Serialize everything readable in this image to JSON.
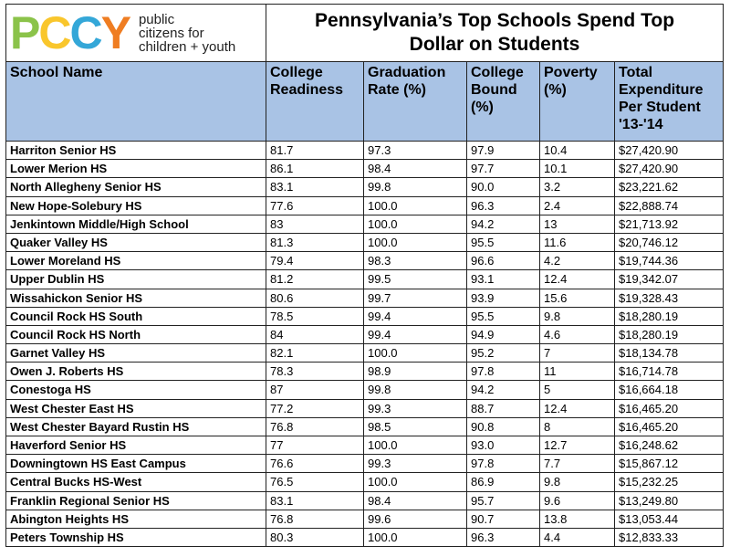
{
  "logo": {
    "letters": [
      {
        "char": "P",
        "color": "#8bc34a"
      },
      {
        "char": "C",
        "color": "#f9c62c"
      },
      {
        "char": "C",
        "color": "#34a7d8"
      },
      {
        "char": "Y",
        "color": "#ef7d22"
      }
    ],
    "lines": [
      "public",
      "citizens for",
      "children + youth"
    ]
  },
  "title": [
    "Pennsylvania’s Top Schools Spend Top",
    "Dollar on Students"
  ],
  "headers": [
    "School Name",
    "College Readiness",
    "Graduation Rate (%)",
    "College Bound (%)",
    "Poverty (%)",
    "Total Expenditure Per Student '13-'14"
  ],
  "header_color": "#a9c3e5",
  "rows": [
    [
      "Harriton Senior  HS",
      "81.7",
      "97.3",
      "97.9",
      "10.4",
      "$27,420.90"
    ],
    [
      "Lower Merion HS",
      "86.1",
      "98.4",
      "97.7",
      "10.1",
      "$27,420.90"
    ],
    [
      "North Allegheny Senior  HS",
      "83.1",
      "99.8",
      "90.0",
      "3.2",
      "$23,221.62"
    ],
    [
      "New Hope-Solebury HS",
      "77.6",
      "100.0",
      "96.3",
      "2.4",
      "$22,888.74"
    ],
    [
      "Jenkintown Middle/High  School",
      "83",
      "100.0",
      "94.2",
      "13",
      "$21,713.92"
    ],
    [
      "Quaker Valley HS",
      "81.3",
      "100.0",
      "95.5",
      "11.6",
      "$20,746.12"
    ],
    [
      "Lower Moreland HS",
      "79.4",
      "98.3",
      "96.6",
      "4.2",
      "$19,744.36"
    ],
    [
      "Upper Dublin HS",
      "81.2",
      "99.5",
      "93.1",
      "12.4",
      "$19,342.07"
    ],
    [
      "Wissahickon Senior  HS",
      "80.6",
      "99.7",
      "93.9",
      "15.6",
      "$19,328.43"
    ],
    [
      "Council Rock HS South",
      "78.5",
      "99.4",
      "95.5",
      "9.8",
      "$18,280.19"
    ],
    [
      "Council Rock HS North",
      "84",
      "99.4",
      "94.9",
      "4.6",
      "$18,280.19"
    ],
    [
      "Garnet Valley HS",
      "82.1",
      "100.0",
      "95.2",
      "7",
      "$18,134.78"
    ],
    [
      "Owen J. Roberts HS",
      "78.3",
      "98.9",
      "97.8",
      "11",
      "$16,714.78"
    ],
    [
      "Conestoga  HS",
      "87",
      "99.8",
      "94.2",
      "5",
      "$16,664.18"
    ],
    [
      "West Chester East HS",
      "77.2",
      "99.3",
      "88.7",
      "12.4",
      "$16,465.20"
    ],
    [
      "West Chester Bayard Rustin HS",
      "76.8",
      "98.5",
      "90.8",
      "8",
      "$16,465.20"
    ],
    [
      "Haverford Senior  HS",
      "77",
      "100.0",
      "93.0",
      "12.7",
      "$16,248.62"
    ],
    [
      "Downingtown HS East Campus",
      "76.6",
      "99.3",
      "97.8",
      "7.7",
      "$15,867.12"
    ],
    [
      "Central Bucks HS-West",
      "76.5",
      "100.0",
      "86.9",
      "9.8",
      "$15,232.25"
    ],
    [
      "Franklin Regional Senior  HS",
      "83.1",
      "98.4",
      "95.7",
      "9.6",
      "$13,249.80"
    ],
    [
      "Abington Heights HS",
      "76.8",
      "99.6",
      "90.7",
      "13.8",
      "$13,053.44"
    ],
    [
      "Peters Township  HS",
      "80.3",
      "100.0",
      "96.3",
      "4.4",
      "$12,833.33"
    ]
  ]
}
